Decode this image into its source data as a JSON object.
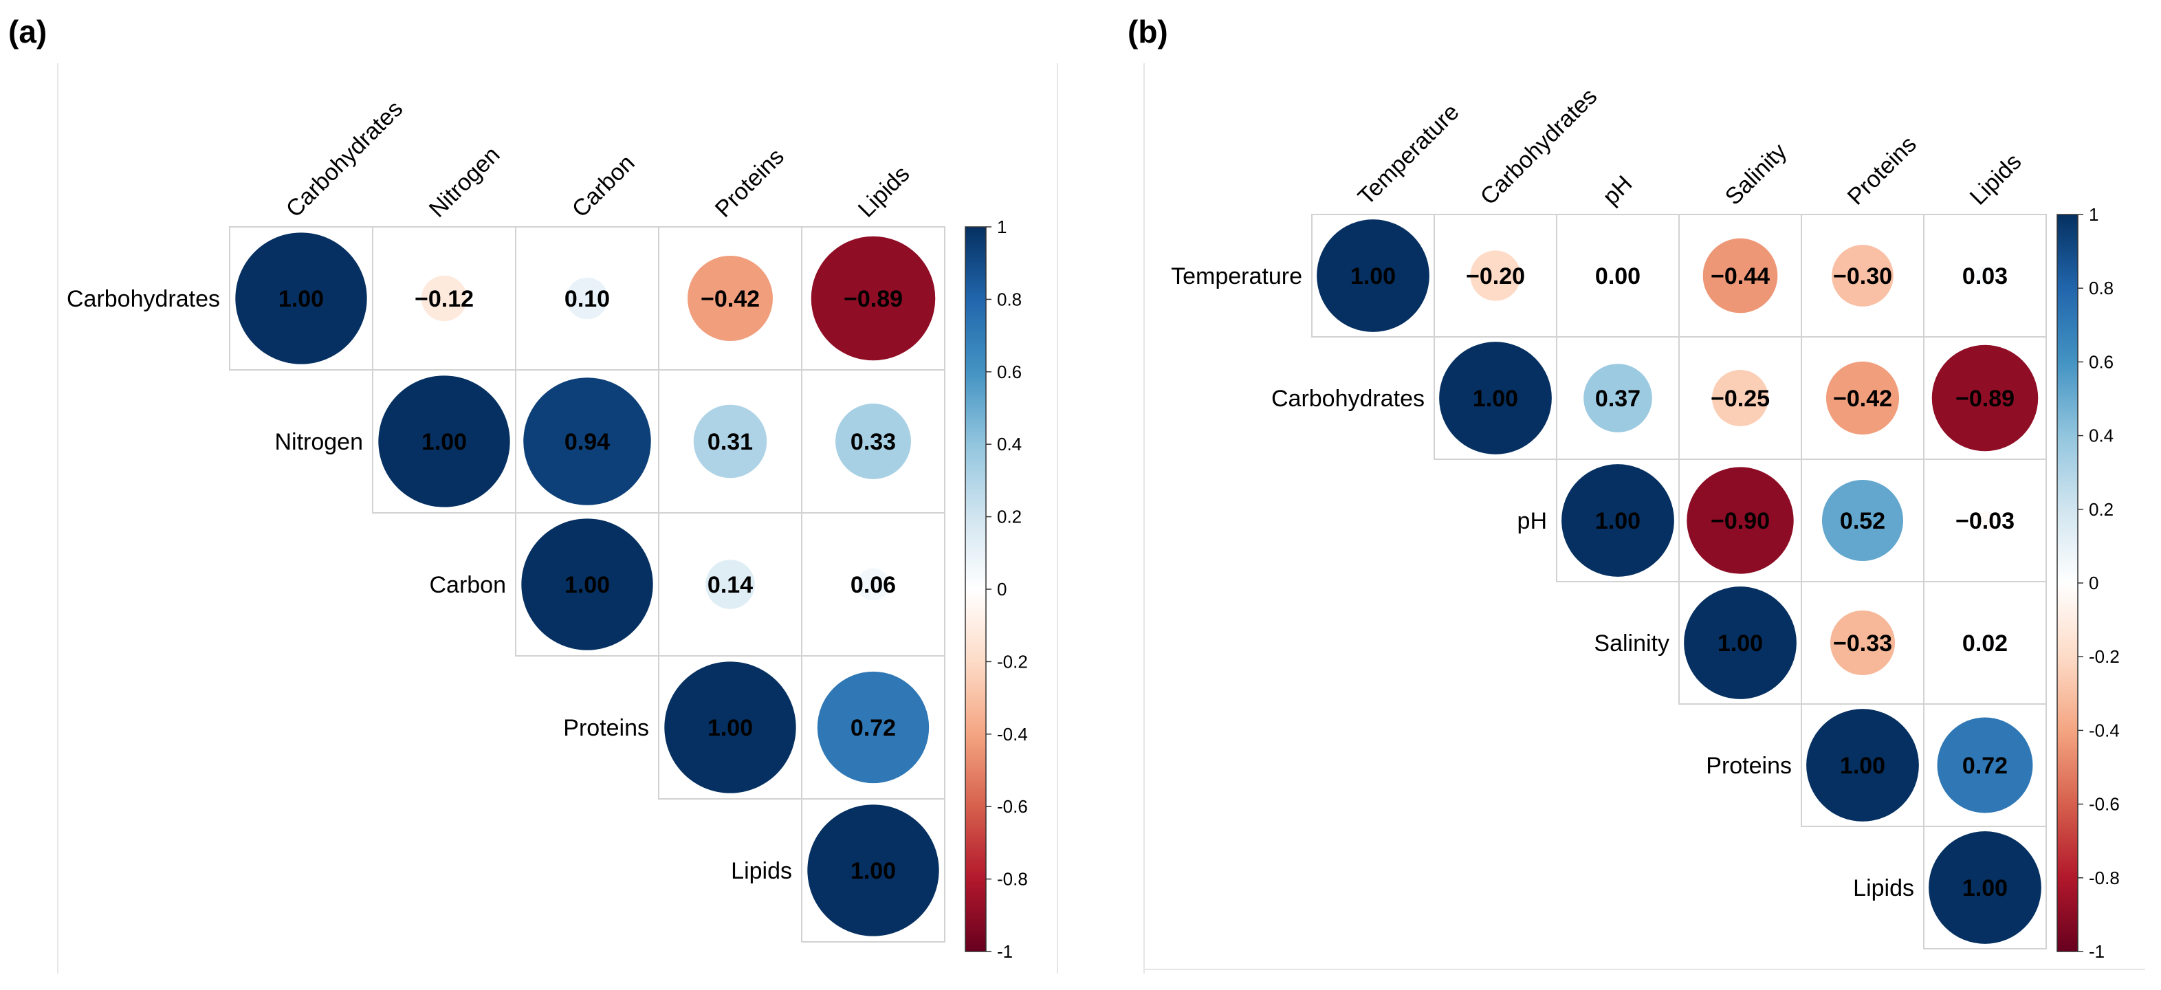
{
  "chart_data": [
    {
      "type": "heatmap",
      "subtype": "correlation-circle-upper-triangle",
      "panel_label": "(a)",
      "variables": [
        "Carbohydrates",
        "Nitrogen",
        "Carbon",
        "Proteins",
        "Lipids"
      ],
      "values": [
        [
          1.0,
          -0.12,
          0.1,
          -0.42,
          -0.89
        ],
        [
          null,
          1.0,
          0.94,
          0.31,
          0.33
        ],
        [
          null,
          null,
          1.0,
          0.14,
          0.06
        ],
        [
          null,
          null,
          null,
          1.0,
          0.72
        ],
        [
          null,
          null,
          null,
          null,
          1.0
        ]
      ],
      "value_labels": [
        [
          "1.00",
          "−0.12",
          "0.10",
          "−0.42",
          "−0.89"
        ],
        [
          "",
          "1.00",
          "0.94",
          "0.31",
          "0.33"
        ],
        [
          "",
          "",
          "1.00",
          "0.14",
          "0.06"
        ],
        [
          "",
          "",
          "",
          "1.00",
          "0.72"
        ],
        [
          "",
          "",
          "",
          "",
          "1.00"
        ]
      ],
      "colorbar": {
        "range": [
          -1,
          1
        ],
        "ticks": [
          1,
          0.8,
          0.6,
          0.4,
          0.2,
          0,
          -0.2,
          -0.4,
          -0.6,
          -0.8,
          -1
        ],
        "tick_labels": [
          "1",
          "0.8",
          "0.6",
          "0.4",
          "0.2",
          "0",
          "-0.2",
          "-0.4",
          "-0.6",
          "-0.8",
          "-1"
        ],
        "palette": [
          "#67001F",
          "#B2182B",
          "#D6604D",
          "#F4A582",
          "#FDDBC7",
          "#FFFFFF",
          "#D1E5F0",
          "#92C5DE",
          "#4393C3",
          "#2166AC",
          "#053061"
        ]
      }
    },
    {
      "type": "heatmap",
      "subtype": "correlation-circle-upper-triangle",
      "panel_label": "(b)",
      "variables": [
        "Temperature",
        "Carbohydrates",
        "pH",
        "Salinity",
        "Proteins",
        "Lipids"
      ],
      "values": [
        [
          1.0,
          -0.2,
          0.0,
          -0.44,
          -0.3,
          0.03
        ],
        [
          null,
          1.0,
          0.37,
          -0.25,
          -0.42,
          -0.89
        ],
        [
          null,
          null,
          1.0,
          -0.9,
          0.52,
          -0.03
        ],
        [
          null,
          null,
          null,
          1.0,
          -0.33,
          0.02
        ],
        [
          null,
          null,
          null,
          null,
          1.0,
          0.72
        ],
        [
          null,
          null,
          null,
          null,
          null,
          1.0
        ]
      ],
      "value_labels": [
        [
          "1.00",
          "−0.20",
          "0.00",
          "−0.44",
          "−0.30",
          "0.03"
        ],
        [
          "",
          "1.00",
          "0.37",
          "−0.25",
          "−0.42",
          "−0.89"
        ],
        [
          "",
          "",
          "1.00",
          "−0.90",
          "0.52",
          "−0.03"
        ],
        [
          "",
          "",
          "",
          "1.00",
          "−0.33",
          "0.02"
        ],
        [
          "",
          "",
          "",
          "",
          "1.00",
          "0.72"
        ],
        [
          "",
          "",
          "",
          "",
          "",
          "1.00"
        ]
      ],
      "colorbar": {
        "range": [
          -1,
          1
        ],
        "ticks": [
          1,
          0.8,
          0.6,
          0.4,
          0.2,
          0,
          -0.2,
          -0.4,
          -0.6,
          -0.8,
          -1
        ],
        "tick_labels": [
          "1",
          "0.8",
          "0.6",
          "0.4",
          "0.2",
          "0",
          "-0.2",
          "-0.4",
          "-0.6",
          "-0.8",
          "-1"
        ],
        "palette": [
          "#67001F",
          "#B2182B",
          "#D6604D",
          "#F4A582",
          "#FDDBC7",
          "#FFFFFF",
          "#D1E5F0",
          "#92C5DE",
          "#4393C3",
          "#2166AC",
          "#053061"
        ]
      }
    }
  ]
}
